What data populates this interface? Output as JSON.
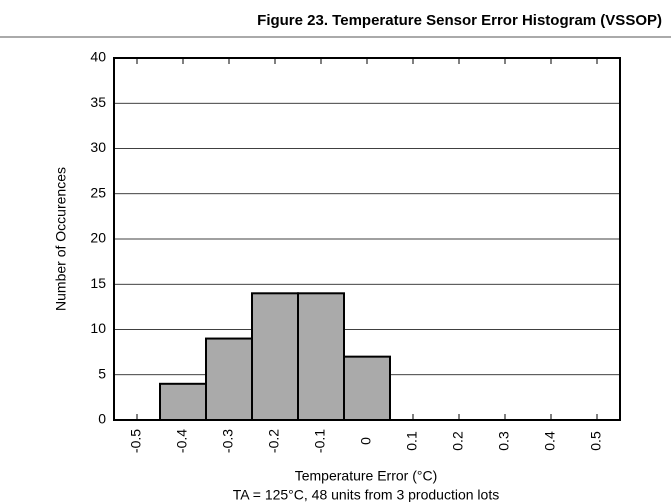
{
  "chart_data": {
    "type": "histogram",
    "title": "Figure 23. Temperature Sensor Error Histogram (VSSOP)",
    "x_label": "Temperature Error (°C)",
    "y_label": "Number of Occurences",
    "annotation": "TA = 125°C, 48 units from 3 production lots",
    "bins": [
      -0.45,
      -0.35,
      -0.25,
      -0.15,
      -0.05,
      0.05
    ],
    "values": [
      4,
      9,
      14,
      14,
      7
    ],
    "color": "#aaaaaa",
    "xlim": [
      -0.55,
      0.55
    ],
    "xticks": [
      -0.5,
      -0.4,
      -0.3,
      -0.2,
      -0.1,
      0,
      0.1,
      0.2,
      0.3,
      0.4,
      0.5
    ],
    "ylim": [
      0,
      40
    ],
    "yticks": [
      0,
      5,
      10,
      15,
      20,
      25,
      30,
      35,
      40
    ],
    "grid": true
  }
}
